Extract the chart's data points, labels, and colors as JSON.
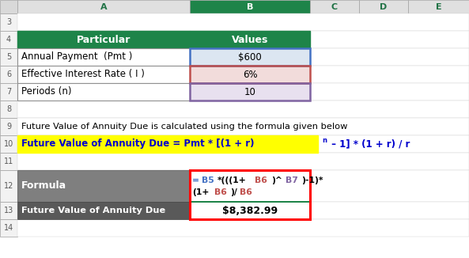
{
  "fig_width": 5.93,
  "fig_height": 3.26,
  "bg_color": "#ffffff",
  "green_header_bg": "#1e8449",
  "row5_a": "Annual Payment  (Pmt )",
  "row5_b": "$600",
  "row6_a": "Effective Interest Rate ( I )",
  "row6_b": "6%",
  "row7_a": "Periods (n)",
  "row7_b": "10",
  "row9_text": "Future Value of Annuity Due is calculated using the formula given below",
  "row10_bg": "#ffff00",
  "row10_fg": "#0000cd",
  "formula_label": "Formula",
  "result_label": "Future Value of Annuity Due",
  "result_value": "$8,382.99",
  "cell_b5_border": "#4472c4",
  "cell_b6_border": "#c0504d",
  "cell_b7_border": "#8064a2",
  "red_border": "#ff0000",
  "green_sep": "#1e8449",
  "row5_b_bg": "#dce6f1",
  "row6_b_bg": "#f2dcdb",
  "row7_b_bg": "#e8e0ef",
  "gray_dark": "#595959",
  "gray_mid": "#7f7f7f",
  "formula_blue": "#4472c4",
  "formula_red": "#c0504d",
  "formula_purple": "#8064a2",
  "formula_black": "#000000",
  "white": "#ffffff",
  "col_header_green": "#217346",
  "col_b_selected_green": "#1e8449"
}
